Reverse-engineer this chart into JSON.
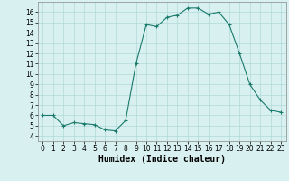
{
  "x": [
    0,
    1,
    2,
    3,
    4,
    5,
    6,
    7,
    8,
    9,
    10,
    11,
    12,
    13,
    14,
    15,
    16,
    17,
    18,
    19,
    20,
    21,
    22,
    23
  ],
  "y": [
    6.0,
    6.0,
    5.0,
    5.3,
    5.2,
    5.1,
    4.6,
    4.5,
    5.5,
    11.0,
    14.8,
    14.6,
    15.5,
    15.7,
    16.4,
    16.4,
    15.8,
    16.0,
    14.8,
    12.0,
    9.0,
    7.5,
    6.5,
    6.3
  ],
  "line_color": "#1a7a6a",
  "marker": "+",
  "bg_color": "#d8f0f0",
  "grid_color": "#b0d8d8",
  "xlabel": "Humidex (Indice chaleur)",
  "xlabel_fontsize": 7,
  "xlim": [
    -0.5,
    23.5
  ],
  "ylim": [
    3.5,
    17
  ],
  "yticks": [
    4,
    5,
    6,
    7,
    8,
    9,
    10,
    11,
    12,
    13,
    14,
    15,
    16
  ],
  "xticks": [
    0,
    1,
    2,
    3,
    4,
    5,
    6,
    7,
    8,
    9,
    10,
    11,
    12,
    13,
    14,
    15,
    16,
    17,
    18,
    19,
    20,
    21,
    22,
    23
  ],
  "xtick_labels": [
    "0",
    "1",
    "2",
    "3",
    "4",
    "5",
    "6",
    "7",
    "8",
    "9",
    "10",
    "11",
    "12",
    "13",
    "14",
    "15",
    "16",
    "17",
    "18",
    "19",
    "20",
    "21",
    "22",
    "23"
  ],
  "tick_fontsize": 5.5
}
